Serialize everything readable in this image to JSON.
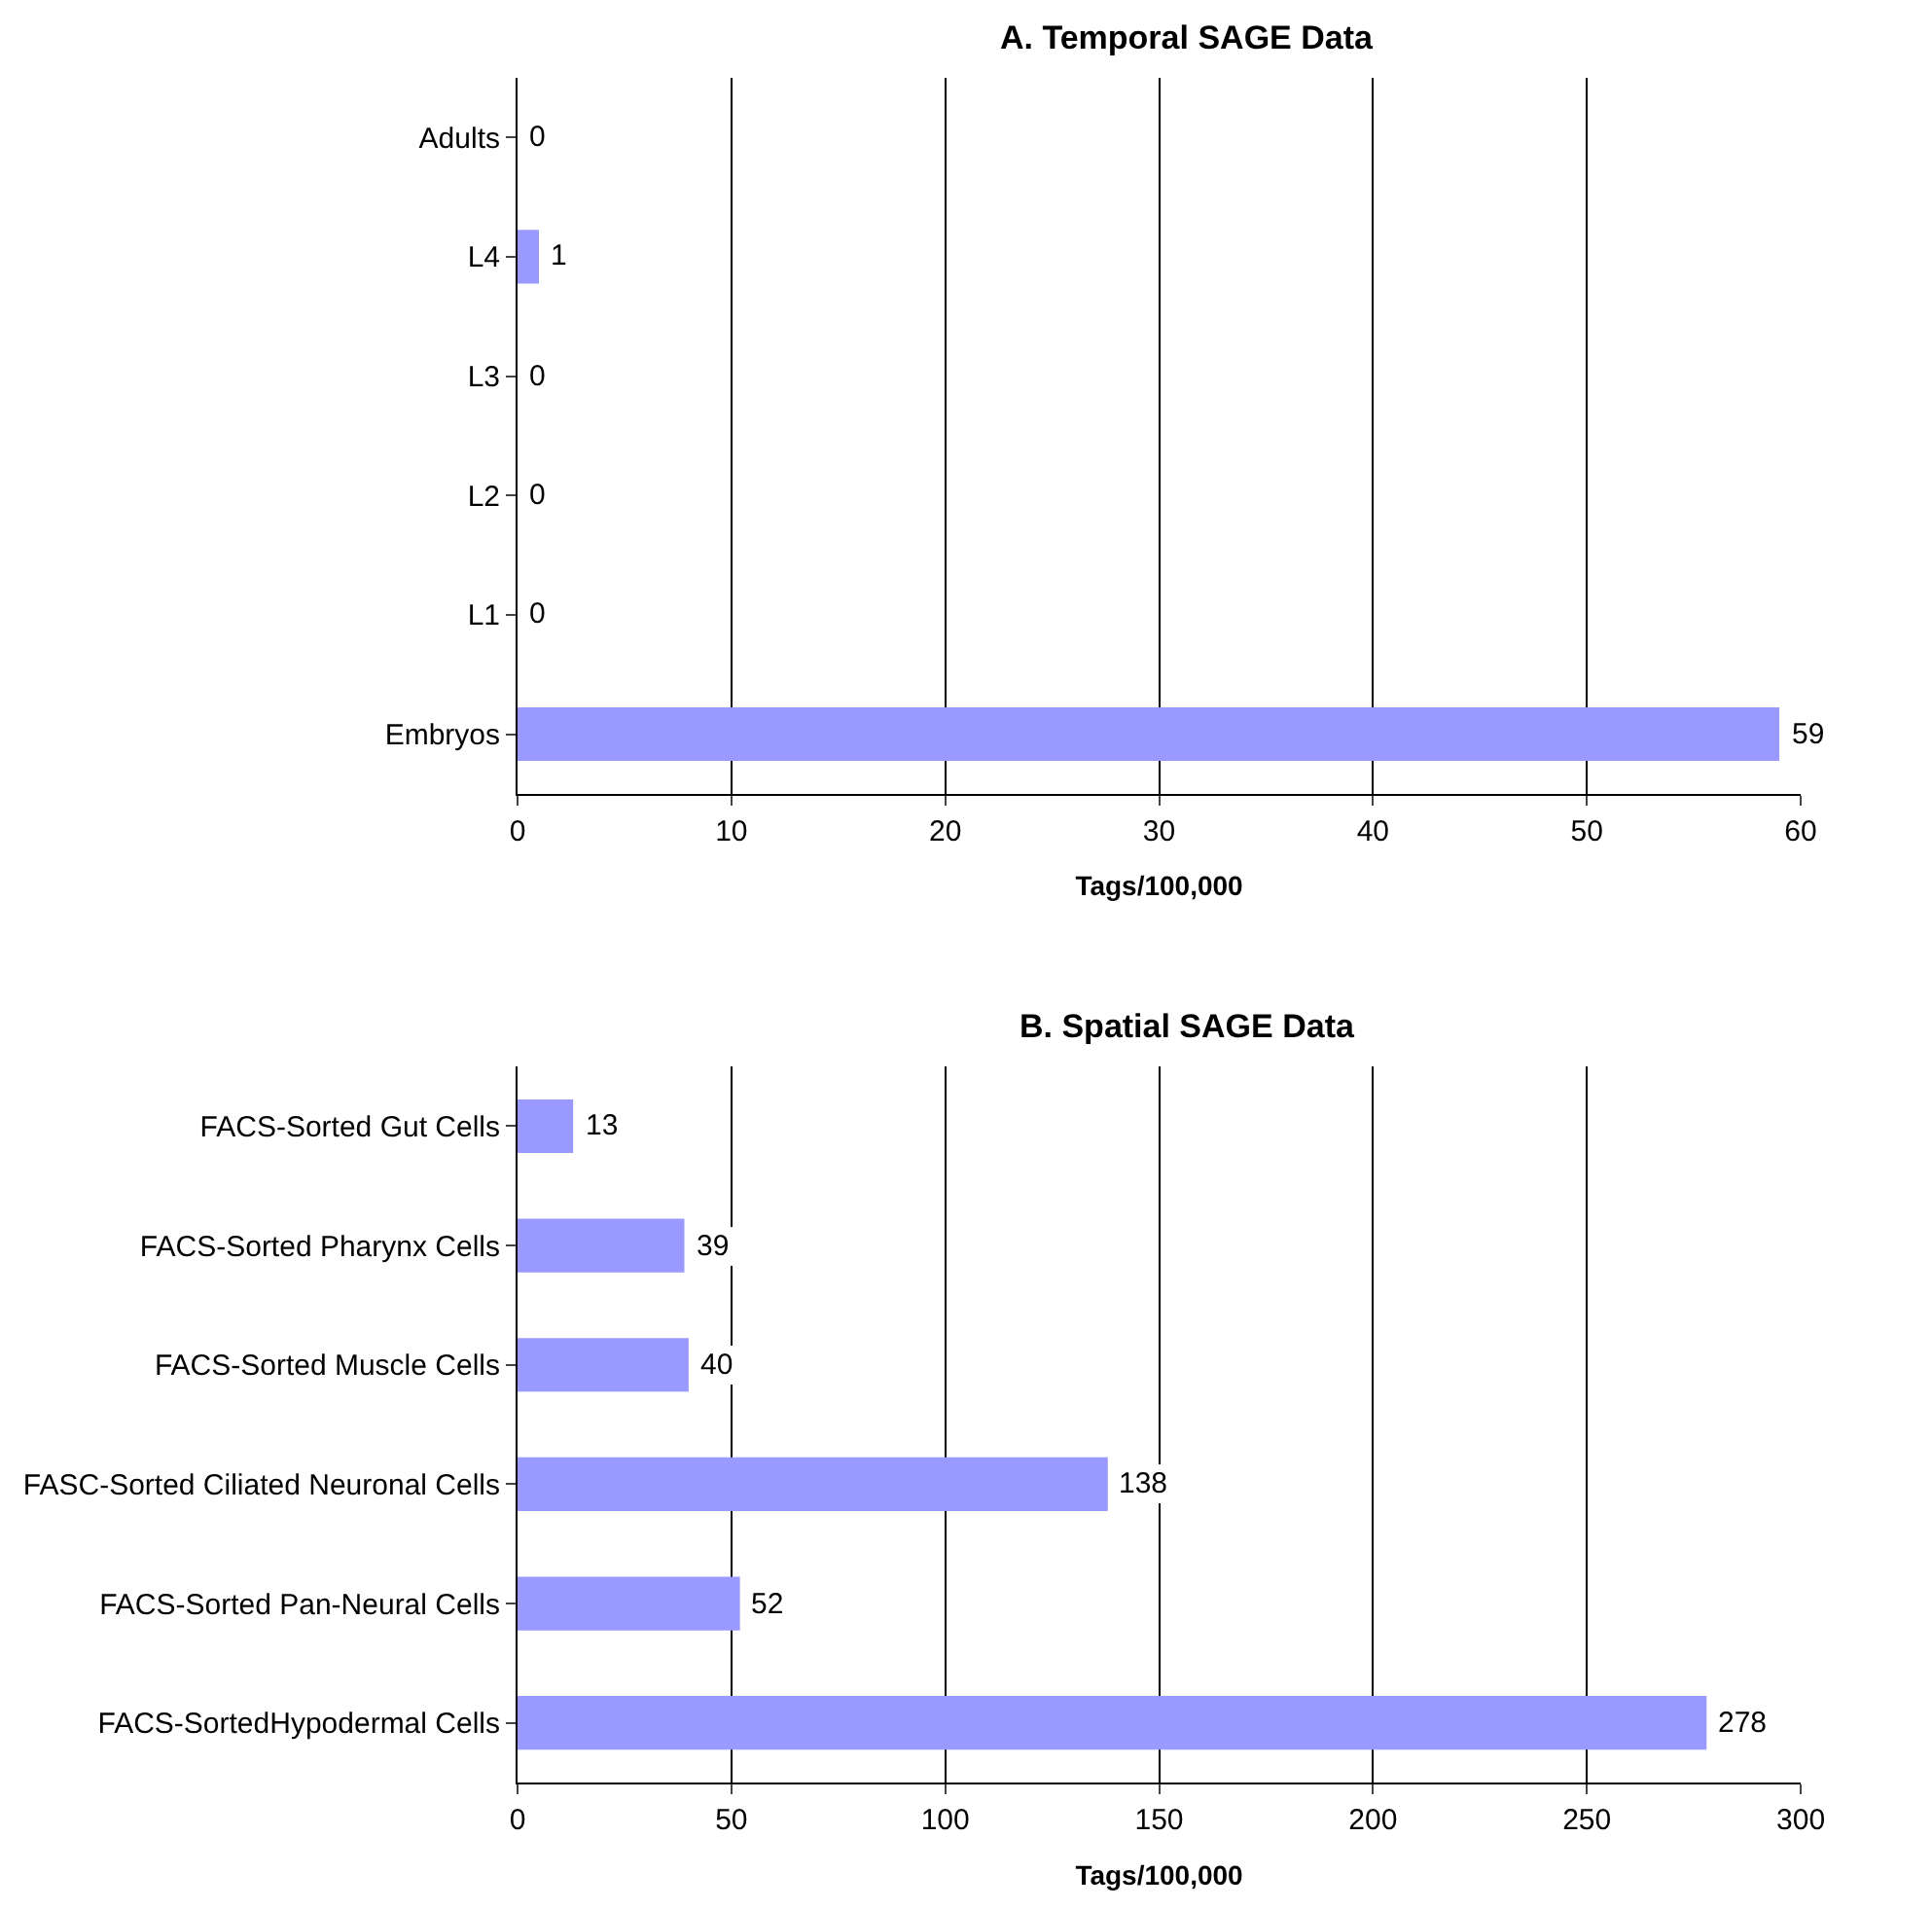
{
  "chart_data": [
    {
      "type": "bar",
      "orientation": "horizontal",
      "title": "A. Temporal SAGE Data",
      "xlabel": "Tags/100,000",
      "categories": [
        "Adults",
        "L4",
        "L3",
        "L2",
        "L1",
        "Embryos"
      ],
      "values": [
        0,
        1,
        0,
        0,
        0,
        59
      ],
      "color": "#9999ff",
      "xlim": [
        0,
        60
      ],
      "xticks": [
        0,
        10,
        20,
        30,
        40,
        50,
        60
      ],
      "grid": "x",
      "data_labels": true
    },
    {
      "type": "bar",
      "orientation": "horizontal",
      "title": "B. Spatial SAGE Data",
      "xlabel": "Tags/100,000",
      "categories": [
        "FACS-Sorted Gut Cells",
        "FACS-Sorted Pharynx Cells",
        "FACS-Sorted Muscle Cells",
        "FASC-Sorted Ciliated Neuronal Cells",
        "FACS-Sorted Pan-Neural Cells",
        "FACS-SortedHypodermal Cells"
      ],
      "values": [
        13,
        39,
        40,
        138,
        52,
        278
      ],
      "color": "#9999ff",
      "xlim": [
        0,
        300
      ],
      "xticks": [
        0,
        50,
        100,
        150,
        200,
        250,
        300
      ],
      "grid": "x",
      "data_labels": true
    }
  ]
}
